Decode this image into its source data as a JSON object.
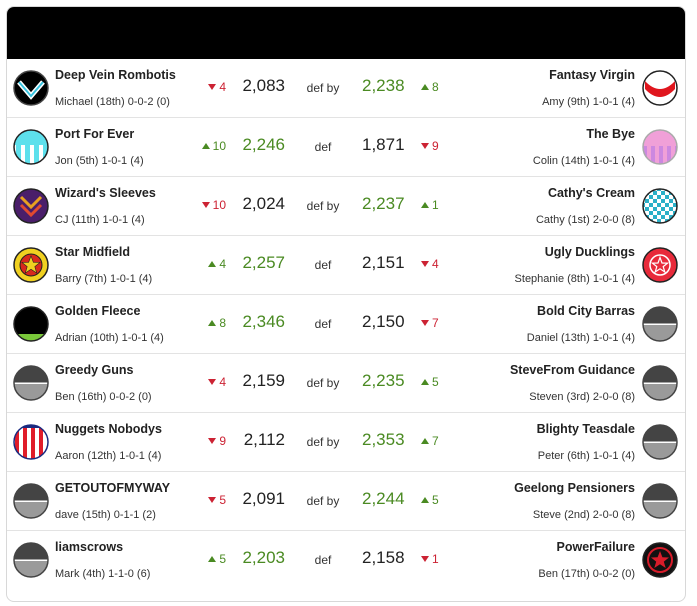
{
  "matches": [
    {
      "home": {
        "team": "Deep Vein Rombotis",
        "coach": "Michael (18th) 0-0-2 (0)",
        "move": {
          "dir": "down",
          "value": "4"
        },
        "score": "2,083",
        "logo": "chevron-logo-icon"
      },
      "result": "def by",
      "away": {
        "team": "Fantasy Virgin",
        "coach": "Amy (9th) 1-0-1 (4)",
        "move": {
          "dir": "up",
          "value": "8"
        },
        "score": "2,238",
        "logo": "red-sash-logo-icon"
      },
      "winner": "away"
    },
    {
      "home": {
        "team": "Port For Ever",
        "coach": "Jon (5th) 1-0-1 (4)",
        "move": {
          "dir": "up",
          "value": "10"
        },
        "score": "2,246",
        "logo": "cyan-stripes-logo-icon"
      },
      "result": "def",
      "away": {
        "team": "The Bye",
        "coach": "Colin (14th) 1-0-1 (4)",
        "move": {
          "dir": "down",
          "value": "9"
        },
        "score": "1,871",
        "logo": "pink-stripes-logo-icon"
      },
      "winner": "home"
    },
    {
      "home": {
        "team": "Wizard's Sleeves",
        "coach": "CJ (11th) 1-0-1 (4)",
        "move": {
          "dir": "down",
          "value": "10"
        },
        "score": "2,024",
        "logo": "purple-chevrons-logo-icon"
      },
      "result": "def by",
      "away": {
        "team": "Cathy's Cream",
        "coach": "Cathy (1st) 2-0-0 (8)",
        "move": {
          "dir": "up",
          "value": "1"
        },
        "score": "2,237",
        "logo": "checker-logo-icon"
      },
      "winner": "away"
    },
    {
      "home": {
        "team": "Star Midfield",
        "coach": "Barry (7th) 1-0-1 (4)",
        "move": {
          "dir": "up",
          "value": "4"
        },
        "score": "2,257",
        "logo": "yellow-star-logo-icon"
      },
      "result": "def",
      "away": {
        "team": "Ugly Ducklings",
        "coach": "Stephanie (8th) 1-0-1 (4)",
        "move": {
          "dir": "down",
          "value": "4"
        },
        "score": "2,151",
        "logo": "red-star-logo-icon"
      },
      "winner": "home"
    },
    {
      "home": {
        "team": "Golden Fleece",
        "coach": "Adrian (10th) 1-0-1 (4)",
        "move": {
          "dir": "up",
          "value": "8"
        },
        "score": "2,346",
        "logo": "black-green-logo-icon"
      },
      "result": "def",
      "away": {
        "team": "Bold City Barras",
        "coach": "Daniel (13th) 1-0-1 (4)",
        "move": {
          "dir": "down",
          "value": "7"
        },
        "score": "2,150",
        "logo": "default-logo-icon"
      },
      "winner": "home"
    },
    {
      "home": {
        "team": "Greedy Guns",
        "coach": "Ben (16th) 0-0-2 (0)",
        "move": {
          "dir": "down",
          "value": "4"
        },
        "score": "2,159",
        "logo": "default-logo-icon"
      },
      "result": "def by",
      "away": {
        "team": "SteveFrom Guidance",
        "coach": "Steven (3rd) 2-0-0 (8)",
        "move": {
          "dir": "up",
          "value": "5"
        },
        "score": "2,235",
        "logo": "default-logo-icon"
      },
      "winner": "away"
    },
    {
      "home": {
        "team": "Nuggets Nobodys",
        "coach": "Aaron (12th) 1-0-1 (4)",
        "move": {
          "dir": "down",
          "value": "9"
        },
        "score": "2,112",
        "logo": "red-stripes-logo-icon"
      },
      "result": "def by",
      "away": {
        "team": "Blighty Teasdale",
        "coach": "Peter (6th) 1-0-1 (4)",
        "move": {
          "dir": "up",
          "value": "7"
        },
        "score": "2,353",
        "logo": "default-logo-icon"
      },
      "winner": "away"
    },
    {
      "home": {
        "team": "GETOUTOFMYWAY",
        "coach": "dave (15th) 0-1-1 (2)",
        "move": {
          "dir": "down",
          "value": "5"
        },
        "score": "2,091",
        "logo": "default-logo-icon"
      },
      "result": "def by",
      "away": {
        "team": "Geelong Pensioners",
        "coach": "Steve (2nd) 2-0-0 (8)",
        "move": {
          "dir": "up",
          "value": "5"
        },
        "score": "2,244",
        "logo": "default-logo-icon"
      },
      "winner": "away"
    },
    {
      "home": {
        "team": "liamscrows",
        "coach": "Mark (4th) 1-1-0 (6)",
        "move": {
          "dir": "up",
          "value": "5"
        },
        "score": "2,203",
        "logo": "default-logo-icon"
      },
      "result": "def",
      "away": {
        "team": "PowerFailure",
        "coach": "Ben (17th) 0-0-2 (0)",
        "move": {
          "dir": "down",
          "value": "1"
        },
        "score": "2,158",
        "logo": "black-red-star-logo-icon"
      },
      "winner": "home"
    }
  ],
  "colors": {
    "win": "#4a8a22",
    "lose": "#222222",
    "up": "#4a8a22",
    "down": "#cc2233",
    "header": "#000000"
  }
}
